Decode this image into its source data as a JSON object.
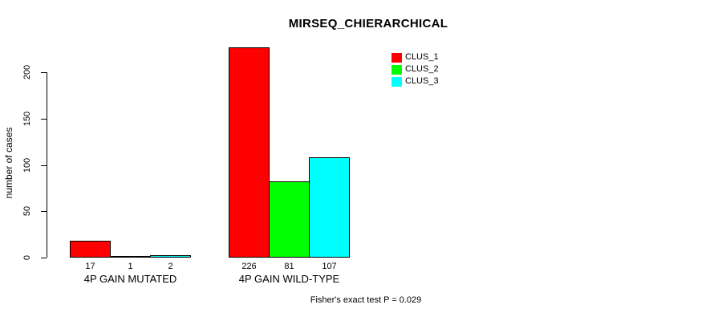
{
  "chart_data": {
    "type": "bar",
    "title": "MIRSEQ_CHIERARCHICAL",
    "ylabel": "number of cases",
    "xlabel": "",
    "ylim": [
      0,
      232
    ],
    "y_ticks": [
      0,
      50,
      100,
      150,
      200
    ],
    "categories": [
      "4P GAIN MUTATED",
      "4P GAIN WILD-TYPE"
    ],
    "series": [
      {
        "name": "CLUS_1",
        "color": "#ff0000",
        "values": [
          17,
          226
        ]
      },
      {
        "name": "CLUS_2",
        "color": "#00ff00",
        "values": [
          1,
          81
        ]
      },
      {
        "name": "CLUS_3",
        "color": "#00ffff",
        "values": [
          2,
          107
        ]
      }
    ],
    "bar_value_labels": [
      [
        "17",
        "1",
        "2"
      ],
      [
        "226",
        "81",
        "107"
      ]
    ],
    "annotation": "Fisher's exact test P = 0.029",
    "legend_position": "top-right",
    "grid": false,
    "bar_border_color": "#000000",
    "background": "#ffffff"
  }
}
